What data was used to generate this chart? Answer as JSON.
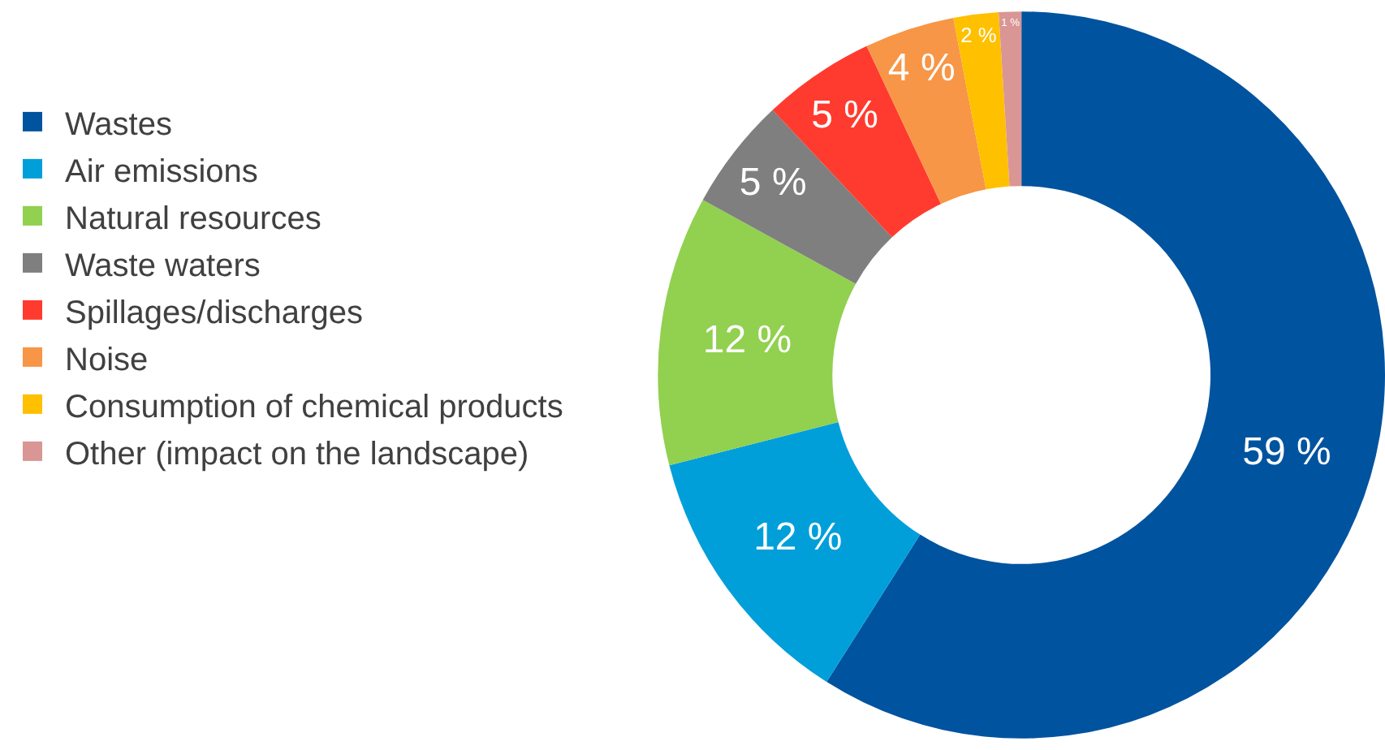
{
  "chart_data": {
    "type": "donut",
    "categories": [
      "Wastes",
      "Air emissions",
      "Natural resources",
      "Waste waters",
      "Spillages/discharges",
      "Noise",
      "Consumption of chemical products",
      "Other (impact on the landscape)"
    ],
    "values": [
      59,
      12,
      12,
      5,
      5,
      4,
      2,
      1
    ],
    "value_labels": [
      "59 %",
      "12 %",
      "12 %",
      "5 %",
      "5 %",
      "4 %",
      "2 %",
      "1 %"
    ],
    "colors": [
      "#00539f",
      "#009fda",
      "#92d050",
      "#7f7f7f",
      "#ff3b2f",
      "#f79646",
      "#ffc000",
      "#d99694"
    ],
    "legend": "left"
  }
}
